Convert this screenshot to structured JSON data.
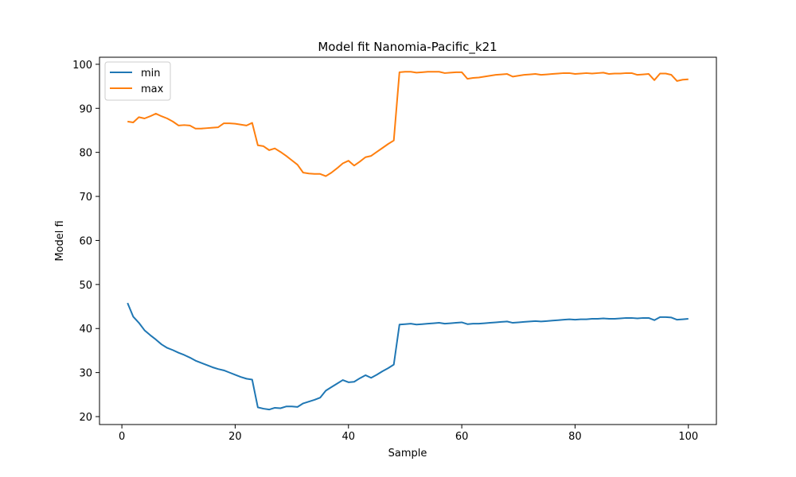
{
  "chart_data": {
    "type": "line",
    "title": "Model fit Nanomia-Pacific_k21",
    "xlabel": "Sample",
    "ylabel": "Model fi",
    "xlim": [
      -3.95,
      104.95
    ],
    "ylim": [
      18.2,
      101.6
    ],
    "xticks": [
      0,
      20,
      40,
      60,
      80,
      100
    ],
    "yticks": [
      20,
      30,
      40,
      50,
      60,
      70,
      80,
      90,
      100
    ],
    "legend_position": "top-left",
    "grid": false,
    "x": [
      1,
      2,
      3,
      4,
      5,
      6,
      7,
      8,
      9,
      10,
      11,
      12,
      13,
      14,
      15,
      16,
      17,
      18,
      19,
      20,
      21,
      22,
      23,
      24,
      25,
      26,
      27,
      28,
      29,
      30,
      31,
      32,
      33,
      34,
      35,
      36,
      37,
      38,
      39,
      40,
      41,
      42,
      43,
      44,
      45,
      46,
      47,
      48,
      49,
      50,
      51,
      52,
      53,
      54,
      55,
      56,
      57,
      58,
      59,
      60,
      61,
      62,
      63,
      64,
      65,
      66,
      67,
      68,
      69,
      70,
      71,
      72,
      73,
      74,
      75,
      76,
      77,
      78,
      79,
      80,
      81,
      82,
      83,
      84,
      85,
      86,
      87,
      88,
      89,
      90,
      91,
      92,
      93,
      94,
      95,
      96,
      97,
      98,
      99,
      100
    ],
    "series": [
      {
        "name": "min",
        "color": "#1f77b4",
        "values": [
          45.8,
          42.7,
          41.3,
          39.6,
          38.5,
          37.5,
          36.4,
          35.6,
          35.1,
          34.5,
          34.0,
          33.4,
          32.7,
          32.2,
          31.7,
          31.2,
          30.8,
          30.5,
          30.0,
          29.5,
          29.0,
          28.6,
          28.4,
          22.1,
          21.8,
          21.6,
          22.0,
          21.9,
          22.3,
          22.3,
          22.2,
          23.0,
          23.4,
          23.8,
          24.3,
          25.9,
          26.7,
          27.5,
          28.3,
          27.8,
          27.9,
          28.7,
          29.4,
          28.8,
          29.5,
          30.3,
          31.0,
          31.8,
          40.9,
          41.0,
          41.1,
          40.9,
          41.0,
          41.1,
          41.2,
          41.3,
          41.1,
          41.2,
          41.3,
          41.4,
          41.0,
          41.1,
          41.1,
          41.2,
          41.3,
          41.4,
          41.5,
          41.6,
          41.3,
          41.4,
          41.5,
          41.6,
          41.7,
          41.6,
          41.7,
          41.8,
          41.9,
          42.0,
          42.1,
          42.0,
          42.1,
          42.1,
          42.2,
          42.2,
          42.3,
          42.2,
          42.2,
          42.3,
          42.4,
          42.4,
          42.3,
          42.4,
          42.4,
          41.9,
          42.6,
          42.6,
          42.5,
          42.0,
          42.1,
          42.2
        ]
      },
      {
        "name": "max",
        "color": "#ff7f0e",
        "values": [
          87.0,
          86.8,
          88.0,
          87.7,
          88.2,
          88.8,
          88.2,
          87.7,
          87.0,
          86.1,
          86.2,
          86.1,
          85.4,
          85.4,
          85.5,
          85.6,
          85.7,
          86.6,
          86.6,
          86.5,
          86.3,
          86.1,
          86.7,
          81.6,
          81.4,
          80.5,
          80.9,
          80.1,
          79.2,
          78.2,
          77.2,
          75.4,
          75.2,
          75.1,
          75.1,
          74.6,
          75.4,
          76.4,
          77.5,
          78.1,
          77.0,
          77.9,
          78.9,
          79.2,
          80.1,
          81.0,
          81.9,
          82.7,
          98.2,
          98.3,
          98.3,
          98.1,
          98.2,
          98.3,
          98.3,
          98.3,
          98.0,
          98.1,
          98.2,
          98.2,
          96.7,
          96.9,
          97.0,
          97.2,
          97.4,
          97.6,
          97.7,
          97.8,
          97.2,
          97.4,
          97.6,
          97.7,
          97.8,
          97.6,
          97.7,
          97.8,
          97.9,
          98.0,
          98.0,
          97.8,
          97.9,
          98.0,
          97.9,
          98.0,
          98.1,
          97.8,
          97.9,
          97.9,
          98.0,
          98.0,
          97.6,
          97.7,
          97.8,
          96.4,
          97.9,
          97.9,
          97.6,
          96.2,
          96.5,
          96.6
        ]
      }
    ]
  }
}
